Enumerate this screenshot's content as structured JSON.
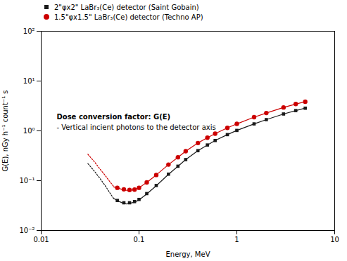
{
  "chart_data": {
    "type": "line",
    "title": "",
    "xlabel": "Energy, MeV",
    "ylabel": "G(E), nGy h⁻¹ count⁻¹ s",
    "log": true,
    "grid": false,
    "legend": "upper left",
    "xlim": [
      0.01,
      10
    ],
    "ylim": [
      0.01,
      100
    ],
    "xticks": [
      0.01,
      0.1,
      1,
      10
    ],
    "yticks": [
      {
        "value": 0.01,
        "label": "10⁻²"
      },
      {
        "value": 0.1,
        "label": "10⁻¹"
      },
      {
        "value": 1,
        "label": "10⁰"
      },
      {
        "value": 10,
        "label": "10¹"
      },
      {
        "value": 100,
        "label": "10²"
      }
    ],
    "annotations": [
      "Dose conversion factor: G(E)",
      "- Vertical incient photons to the detector axis"
    ],
    "series": [
      {
        "type": "line",
        "line_style": "solid",
        "color": "#1a1a1a",
        "x": [
          0.055,
          0.06,
          0.065,
          0.07,
          0.075,
          0.08,
          0.09,
          0.1,
          0.12,
          0.15,
          0.2,
          0.25,
          0.3,
          0.4,
          0.5,
          0.6,
          0.8,
          1.0,
          1.5,
          2.0,
          3.0,
          4.0,
          5.0
        ],
        "values": [
          0.044,
          0.04,
          0.037,
          0.035,
          0.034,
          0.035,
          0.037,
          0.041,
          0.054,
          0.079,
          0.134,
          0.194,
          0.264,
          0.4,
          0.52,
          0.64,
          0.84,
          1.02,
          1.38,
          1.68,
          2.18,
          2.55,
          2.85
        ]
      },
      {
        "type": "line",
        "line_style": "dotted",
        "color": "#1a1a1a",
        "x": [
          0.03,
          0.035,
          0.04,
          0.045,
          0.05,
          0.055
        ],
        "values": [
          0.22,
          0.155,
          0.11,
          0.08,
          0.058,
          0.044
        ]
      },
      {
        "type": "scatter",
        "marker": "square",
        "color": "#1a1a1a",
        "name": "2\"φx2\" LaBr₃(Ce) detector (Saint Gobain)",
        "x": [
          0.06,
          0.07,
          0.08,
          0.09,
          0.1,
          0.12,
          0.15,
          0.2,
          0.25,
          0.3,
          0.4,
          0.5,
          0.6,
          0.8,
          1.0,
          1.5,
          2.0,
          3.0,
          4.0,
          5.0
        ],
        "values": [
          0.04,
          0.036,
          0.036,
          0.038,
          0.042,
          0.055,
          0.08,
          0.135,
          0.195,
          0.265,
          0.4,
          0.52,
          0.64,
          0.84,
          1.02,
          1.38,
          1.68,
          2.18,
          2.55,
          2.85
        ]
      },
      {
        "type": "line",
        "line_style": "solid",
        "color": "#cc0000",
        "x": [
          0.055,
          0.06,
          0.065,
          0.07,
          0.075,
          0.08,
          0.09,
          0.1,
          0.12,
          0.15,
          0.2,
          0.25,
          0.3,
          0.4,
          0.5,
          0.6,
          0.8,
          1.0,
          1.5,
          2.0,
          3.0,
          4.0,
          5.0
        ],
        "values": [
          0.075,
          0.072,
          0.068,
          0.065,
          0.064,
          0.064,
          0.066,
          0.072,
          0.092,
          0.13,
          0.21,
          0.294,
          0.39,
          0.57,
          0.73,
          0.88,
          1.15,
          1.38,
          1.88,
          2.28,
          2.95,
          3.45,
          3.85
        ]
      },
      {
        "type": "line",
        "line_style": "dotted",
        "color": "#cc0000",
        "x": [
          0.03,
          0.035,
          0.04,
          0.045,
          0.05,
          0.055
        ],
        "values": [
          0.34,
          0.24,
          0.17,
          0.128,
          0.097,
          0.077
        ]
      },
      {
        "type": "scatter",
        "marker": "circle",
        "color": "#cc0000",
        "name": "1.5\"φx1.5\" LaBr₃(Ce) detector (Techno AP)",
        "x": [
          0.06,
          0.07,
          0.08,
          0.09,
          0.1,
          0.12,
          0.15,
          0.2,
          0.25,
          0.3,
          0.4,
          0.5,
          0.6,
          0.8,
          1.0,
          1.5,
          2.0,
          3.0,
          4.0,
          5.0
        ],
        "values": [
          0.072,
          0.067,
          0.065,
          0.066,
          0.072,
          0.092,
          0.13,
          0.21,
          0.295,
          0.39,
          0.57,
          0.73,
          0.88,
          1.15,
          1.38,
          1.88,
          2.28,
          2.95,
          3.45,
          3.85
        ]
      }
    ]
  }
}
